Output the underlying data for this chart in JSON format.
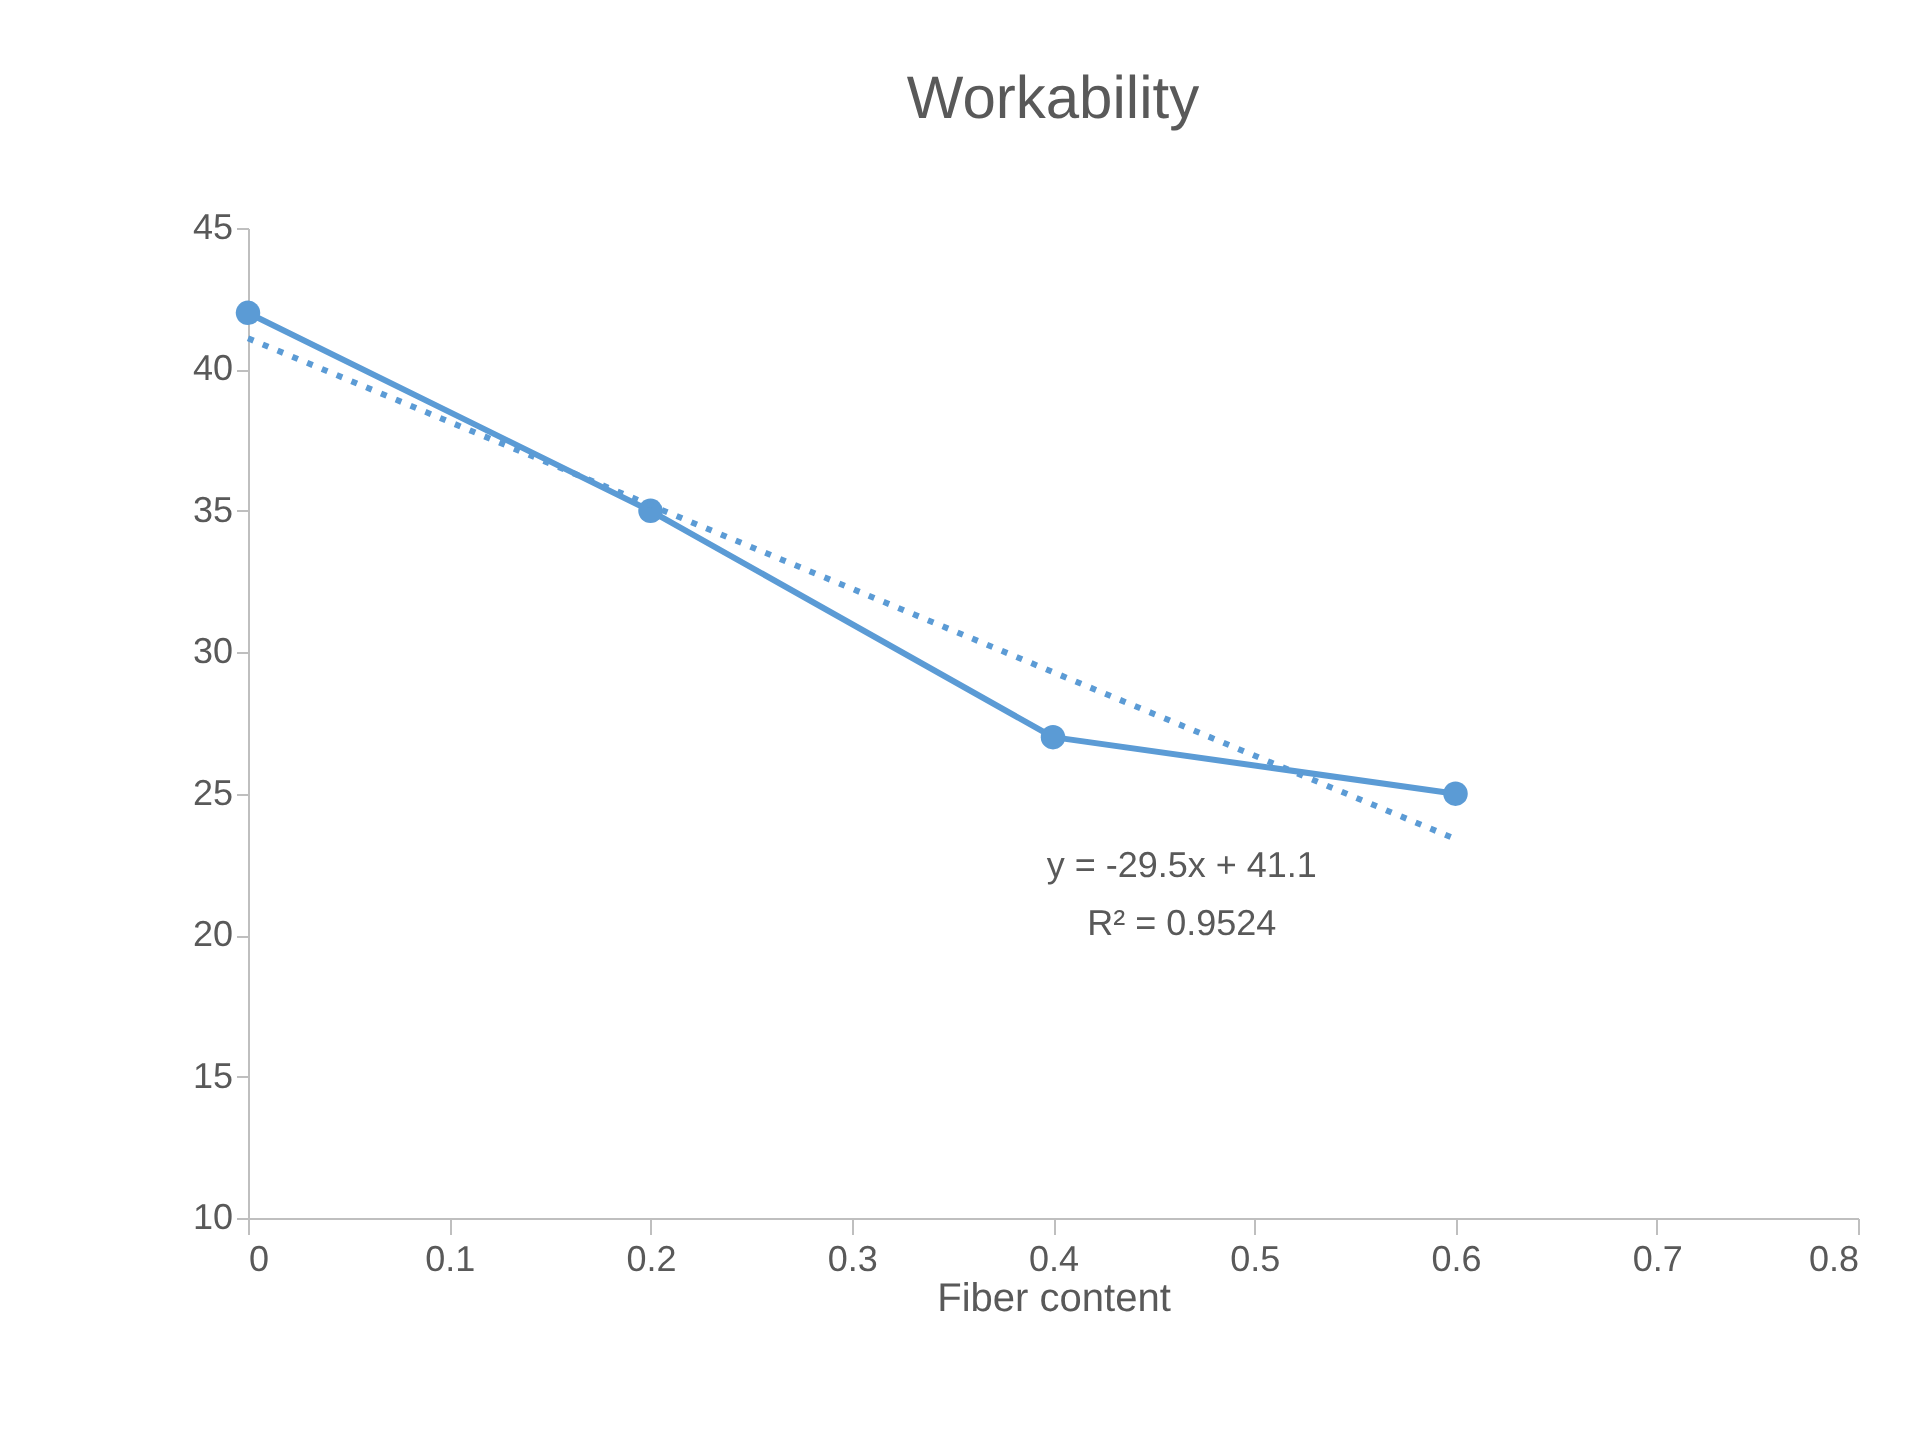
{
  "chart_data": {
    "type": "line",
    "title": "Workability",
    "xlabel": "Fiber content",
    "x": [
      0,
      0.2,
      0.4,
      0.6
    ],
    "series": [
      {
        "color": "#5b9bd5",
        "values": [
          42,
          35,
          27,
          25
        ],
        "marker": "circle",
        "line_style": "solid"
      },
      {
        "type": "line",
        "color": "#5b9bd5",
        "x": [
          0,
          0.6
        ],
        "values": [
          41.1,
          23.4
        ],
        "marker": "none",
        "line_style": "dotted"
      }
    ],
    "xlim": [
      0,
      0.8
    ],
    "xticks": [
      0,
      0.1,
      0.2,
      0.3,
      0.4,
      0.5,
      0.6,
      0.7,
      0.8
    ],
    "ylim": [
      10,
      45
    ],
    "yticks": [
      10,
      15,
      20,
      25,
      30,
      35,
      40,
      45
    ],
    "grid": false,
    "annotations": [
      "y = -29.5x + 41.1",
      "R² = 0.9524"
    ]
  }
}
